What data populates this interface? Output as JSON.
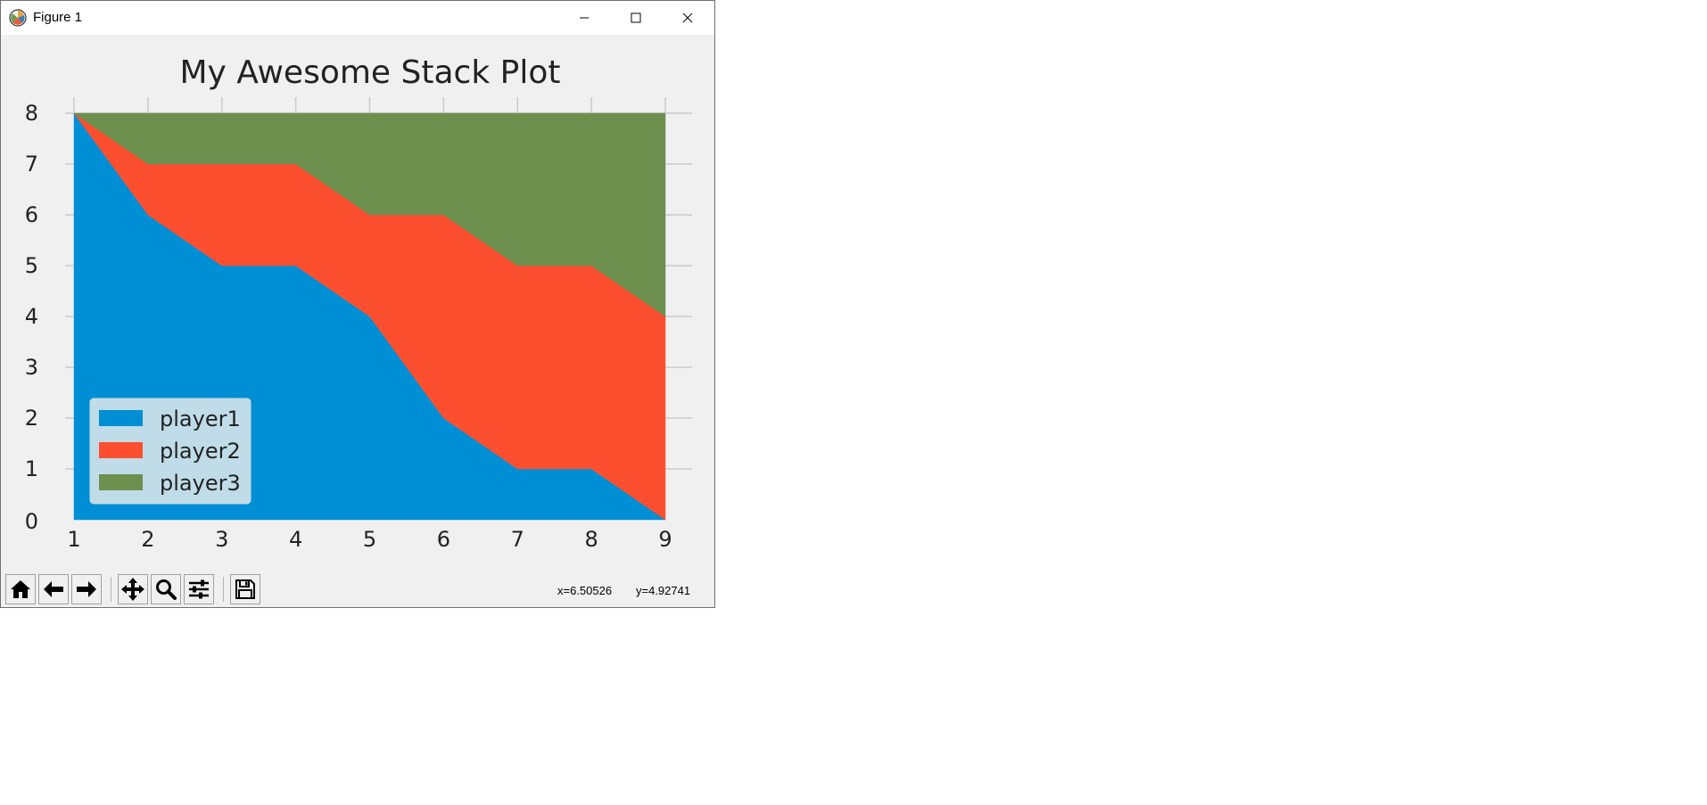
{
  "window": {
    "title": "Figure 1",
    "icon": "matplotlib-icon"
  },
  "chart_data": {
    "type": "area",
    "stacked": true,
    "title": "My Awesome Stack Plot",
    "xlabel": "",
    "ylabel": "",
    "x": [
      1,
      2,
      3,
      4,
      5,
      6,
      7,
      8,
      9
    ],
    "series": [
      {
        "name": "player1",
        "values": [
          8,
          6,
          5,
          5,
          4,
          2,
          1,
          1,
          0
        ],
        "color": "#008fd5"
      },
      {
        "name": "player2",
        "values": [
          0,
          1,
          2,
          2,
          2,
          4,
          4,
          4,
          4
        ],
        "color": "#fc4f30"
      },
      {
        "name": "player3",
        "values": [
          0,
          1,
          1,
          1,
          2,
          2,
          3,
          3,
          4
        ],
        "color": "#6d904f"
      }
    ],
    "xlim": [
      1,
      9
    ],
    "ylim": [
      0,
      8
    ],
    "xticks": [
      1,
      2,
      3,
      4,
      5,
      6,
      7,
      8,
      9
    ],
    "yticks": [
      0,
      1,
      2,
      3,
      4,
      5,
      6,
      7,
      8
    ],
    "grid": true,
    "legend_position": "lower left"
  },
  "toolbar": {
    "buttons": [
      {
        "name": "home-button",
        "icon": "home-icon"
      },
      {
        "name": "back-button",
        "icon": "arrow-left-icon"
      },
      {
        "name": "forward-button",
        "icon": "arrow-right-icon"
      },
      {
        "name": "pan-button",
        "icon": "move-icon"
      },
      {
        "name": "zoom-button",
        "icon": "zoom-icon"
      },
      {
        "name": "configure-subplots-button",
        "icon": "sliders-icon"
      },
      {
        "name": "save-button",
        "icon": "save-icon"
      }
    ],
    "coord_x": "x=6.50526",
    "coord_y": "y=4.92741"
  }
}
